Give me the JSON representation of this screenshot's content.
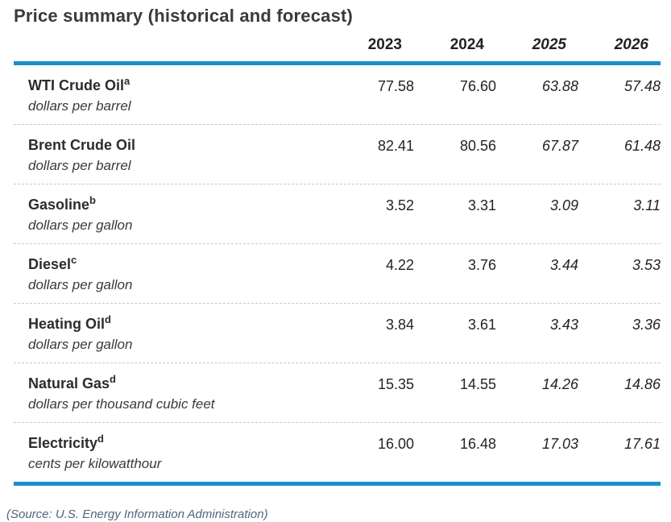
{
  "title": "Price summary (historical and forecast)",
  "source_note": "(Source: U.S. Energy Information Administration)",
  "colors": {
    "accent_blue_rule": "#1b90c9",
    "text_dark": "#2c2c2f",
    "source_text": "#4e6680",
    "dashed_divider": "#c8c8c8"
  },
  "chart_data": {
    "type": "table",
    "title": "Price summary (historical and forecast)",
    "columns": [
      "2023",
      "2024",
      "2025",
      "2026"
    ],
    "historical_columns": [
      "2023",
      "2024"
    ],
    "forecast_columns": [
      "2025",
      "2026"
    ],
    "rows": [
      {
        "name": "WTI Crude Oil",
        "superscript": "a",
        "unit": "dollars per barrel",
        "values": [
          "77.58",
          "76.60",
          "63.88",
          "57.48"
        ]
      },
      {
        "name": "Brent Crude Oil",
        "superscript": "",
        "unit": "dollars per barrel",
        "values": [
          "82.41",
          "80.56",
          "67.87",
          "61.48"
        ]
      },
      {
        "name": "Gasoline",
        "superscript": "b",
        "unit": "dollars per gallon",
        "values": [
          "3.52",
          "3.31",
          "3.09",
          "3.11"
        ]
      },
      {
        "name": "Diesel",
        "superscript": "c",
        "unit": "dollars per gallon",
        "values": [
          "4.22",
          "3.76",
          "3.44",
          "3.53"
        ]
      },
      {
        "name": "Heating Oil",
        "superscript": "d",
        "unit": "dollars per gallon",
        "values": [
          "3.84",
          "3.61",
          "3.43",
          "3.36"
        ]
      },
      {
        "name": "Natural Gas",
        "superscript": "d",
        "unit": "dollars per thousand cubic feet",
        "values": [
          "15.35",
          "14.55",
          "14.26",
          "14.86"
        ]
      },
      {
        "name": "Electricity",
        "superscript": "d",
        "unit": "cents per kilowatthour",
        "values": [
          "16.00",
          "16.48",
          "17.03",
          "17.61"
        ]
      }
    ],
    "source": "(Source: U.S. Energy Information Administration)"
  }
}
